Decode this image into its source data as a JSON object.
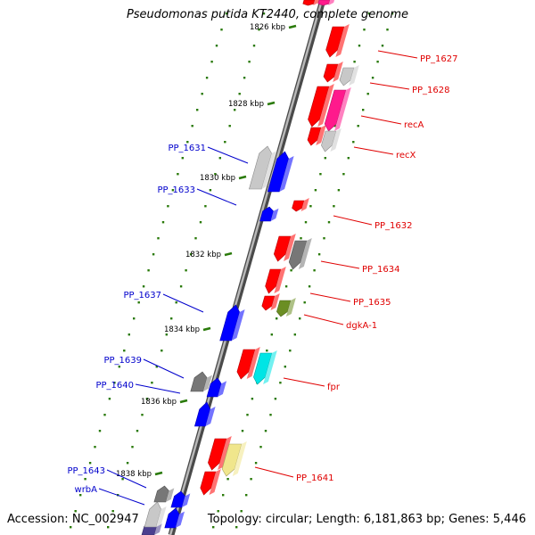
{
  "title": "Pseudomonas putida KT2440, complete genome",
  "footer": {
    "accession": "Accession: NC_002947",
    "topology": "Topology: circular; Length: 6,181,863 bp; Genes: 5,446"
  },
  "colors": {
    "label_red": "#e00000",
    "label_blue": "#0000cc",
    "ruler_tick": "#2a7a0a",
    "backbone": "#8a8a8a"
  },
  "ticks": [
    "1826 kbp",
    "1828 kbp",
    "1830 kbp",
    "1832 kbp",
    "1834 kbp",
    "1836 kbp",
    "1838 kbp"
  ],
  "genes_right": [
    {
      "label": "PP_1627",
      "color": "#ff0000"
    },
    {
      "label": "PP_1628",
      "color": "#c8c8c8"
    },
    {
      "label": "recA",
      "color": "#ff1a8c"
    },
    {
      "label": "recX",
      "color": "#c8c8c8"
    },
    {
      "label": "PP_1632",
      "color": "#ff0000"
    },
    {
      "label": "PP_1634",
      "color": "#777777"
    },
    {
      "label": "PP_1635",
      "color": "#ff0000"
    },
    {
      "label": "dgkA-1",
      "color": "#6b8e23"
    },
    {
      "label": "fpr",
      "color": "#00e5e5"
    },
    {
      "label": "PP_1641",
      "color": "#f0e68c"
    }
  ],
  "genes_left": [
    {
      "label": "PP_1631",
      "color": "#c8c8c8"
    },
    {
      "label": "PP_1633",
      "color": "#0000ff"
    },
    {
      "label": "PP_1637",
      "color": "#0000ff"
    },
    {
      "label": "PP_1639",
      "color": "#777777"
    },
    {
      "label": "PP_1640",
      "color": "#0000ff"
    },
    {
      "label": "PP_1643",
      "color": "#777777"
    },
    {
      "label": "wrbA",
      "color": "#0000ff"
    }
  ]
}
